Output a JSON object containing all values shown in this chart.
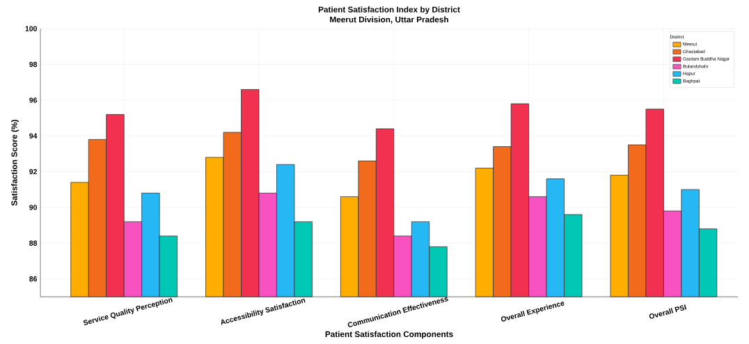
{
  "chart_data": {
    "type": "bar",
    "title": "Patient Satisfaction Index by District",
    "subtitle": "Meerut Division, Uttar Pradesh",
    "xlabel": "Patient Satisfaction Components",
    "ylabel": "Satisfaction Score (%)",
    "legend_title": "District",
    "categories": [
      "Service Quality Perception",
      "Accessibility Satisfaction",
      "Communication Effectiveness",
      "Overall Experience",
      "Overall PSI"
    ],
    "series": [
      {
        "name": "Meerut",
        "color": "#ffad00",
        "values": [
          91.4,
          92.8,
          90.6,
          92.2,
          91.8
        ]
      },
      {
        "name": "Ghaziabad",
        "color": "#f26b1d",
        "values": [
          93.8,
          94.2,
          92.6,
          93.4,
          93.5
        ]
      },
      {
        "name": "Gautam Buddha Nagar",
        "color": "#f2304f",
        "values": [
          95.2,
          96.6,
          94.4,
          95.8,
          95.5
        ]
      },
      {
        "name": "Bulandshahr",
        "color": "#f752bf",
        "values": [
          89.2,
          90.8,
          88.4,
          90.6,
          89.8
        ]
      },
      {
        "name": "Hapur",
        "color": "#25b8f5",
        "values": [
          90.8,
          92.4,
          89.2,
          91.6,
          91.0
        ]
      },
      {
        "name": "Baghpat",
        "color": "#00c8b4",
        "values": [
          88.4,
          89.2,
          87.8,
          89.6,
          88.8
        ]
      }
    ],
    "ylim": [
      85,
      100
    ],
    "yticks": [
      {
        "value": 85,
        "label": null
      },
      86,
      88,
      90,
      92,
      94,
      96,
      98,
      100
    ],
    "grid": true,
    "legend": "top right"
  }
}
